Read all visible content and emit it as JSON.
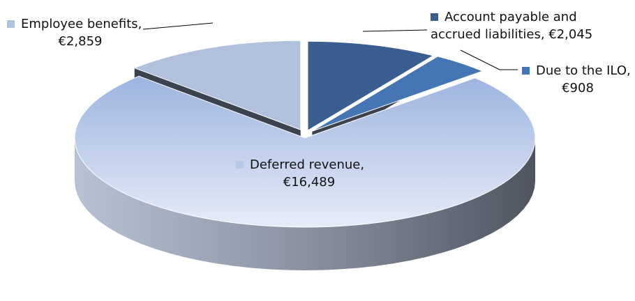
{
  "chart_data": {
    "type": "pie",
    "categories": [
      "Account payable and accrued liabilities,",
      "Due to the ILO,",
      "Deferred revenue,",
      "Employee benefits,"
    ],
    "values": [
      2045,
      908,
      16489,
      2859
    ],
    "value_labels": [
      "€2,045",
      "€908",
      "€16,489",
      "€2,859"
    ],
    "colors": [
      "#3a5e8f",
      "#4675b5",
      "#b9c9e8",
      "#b1c0dc"
    ]
  }
}
